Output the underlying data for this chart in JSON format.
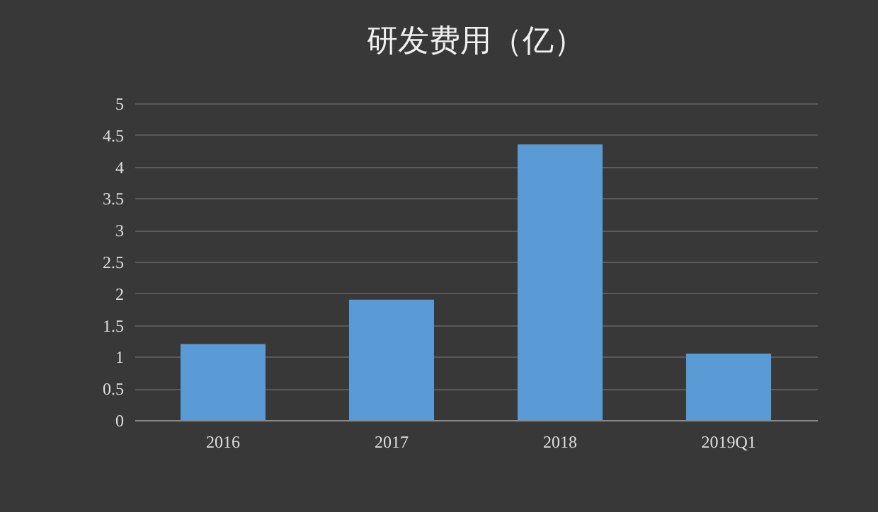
{
  "chart_data": {
    "type": "bar",
    "title": "研发费用（亿）",
    "categories": [
      "2016",
      "2017",
      "2018",
      "2019Q1"
    ],
    "values": [
      1.2,
      1.9,
      4.35,
      1.05
    ],
    "color": "#5b9bd5",
    "ylim": [
      0,
      5
    ],
    "yticks": [
      0,
      0.5,
      1,
      1.5,
      2,
      2.5,
      3,
      3.5,
      4,
      4.5,
      5
    ],
    "grid": "y"
  }
}
